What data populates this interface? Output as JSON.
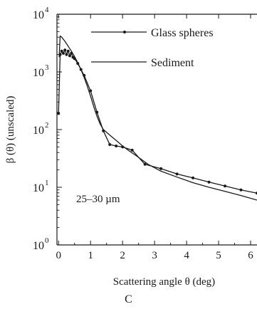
{
  "panel_label": "C",
  "chart_data": {
    "type": "line",
    "xlabel": "Scattering angle θ (deg)",
    "ylabel": "β (θ) (unscaled)",
    "annotation": "25–30 µm",
    "xlim": [
      -0.05,
      6.2
    ],
    "ylim": [
      1,
      10000
    ],
    "yscale": "log",
    "grid": false,
    "legend_position": "top-right",
    "x_ticks": [
      "0",
      "1",
      "2",
      "3",
      "4",
      "5",
      "6"
    ],
    "y_ticks": [
      {
        "base": "10",
        "exp": "0"
      },
      {
        "base": "10",
        "exp": "1"
      },
      {
        "base": "10",
        "exp": "2"
      },
      {
        "base": "10",
        "exp": "3"
      },
      {
        "base": "10",
        "exp": "4"
      }
    ],
    "series": [
      {
        "name": "Glass spheres",
        "marker": "dot",
        "x": [
          0.0,
          0.05,
          0.1,
          0.15,
          0.2,
          0.25,
          0.3,
          0.35,
          0.4,
          0.45,
          0.5,
          0.6,
          0.7,
          0.8,
          1.0,
          1.2,
          1.4,
          1.6,
          1.8,
          2.0,
          2.3,
          2.7,
          3.2,
          3.7,
          4.2,
          4.7,
          5.2,
          5.7,
          6.2
        ],
        "y": [
          190,
          2000,
          2300,
          2100,
          2400,
          2000,
          2300,
          1900,
          2100,
          1800,
          1700,
          1400,
          1100,
          870,
          470,
          200,
          95,
          55,
          52,
          50,
          44,
          25,
          21,
          17,
          14.5,
          12.3,
          10.5,
          9.0,
          7.9
        ]
      },
      {
        "name": "Sediment",
        "marker": "none",
        "x": [
          0.02,
          0.05,
          0.1,
          0.2,
          0.3,
          0.4,
          0.5,
          0.6,
          0.7,
          0.8,
          0.9,
          1.0,
          1.1,
          1.2,
          1.3,
          1.4,
          1.6,
          1.8,
          2.0,
          2.2,
          2.5,
          2.8,
          3.2,
          3.7,
          4.2,
          4.7,
          5.2,
          5.7,
          6.2
        ],
        "y": [
          1800,
          4200,
          4000,
          3400,
          2800,
          2300,
          1850,
          1450,
          1100,
          800,
          560,
          380,
          250,
          170,
          125,
          100,
          80,
          65,
          52,
          43,
          33,
          25,
          19,
          15,
          12,
          10,
          8.5,
          7.2,
          6.0
        ]
      }
    ]
  }
}
